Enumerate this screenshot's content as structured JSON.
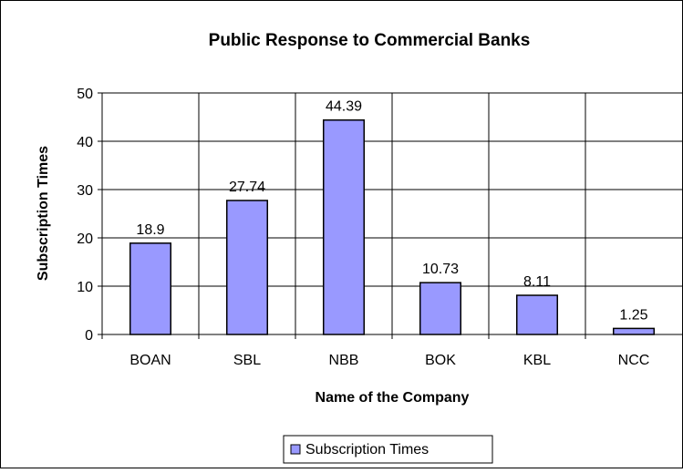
{
  "chart_data": {
    "type": "bar",
    "title": "Public Response to Commercial Banks",
    "xlabel": "Name of the Company",
    "ylabel": "Subscription Times",
    "categories": [
      "BOAN",
      "SBL",
      "NBB",
      "BOK",
      "KBL",
      "NCC"
    ],
    "series": [
      {
        "name": "Subscription Times",
        "values": [
          18.9,
          27.74,
          44.39,
          10.73,
          8.11,
          1.25
        ],
        "labels": [
          "18.9",
          "27.74",
          "44.39",
          "10.73",
          "8.11",
          "1.25"
        ]
      }
    ],
    "ylim": [
      0,
      50
    ],
    "yticks": [
      "0",
      "10",
      "20",
      "30",
      "40",
      "50"
    ],
    "grid": "vertical-and-horizontal",
    "legend_position": "bottom",
    "colors": {
      "bar_fill": "#9999FF",
      "bar_stroke": "#000000",
      "grid": "#000000",
      "frame": "#000000"
    }
  }
}
